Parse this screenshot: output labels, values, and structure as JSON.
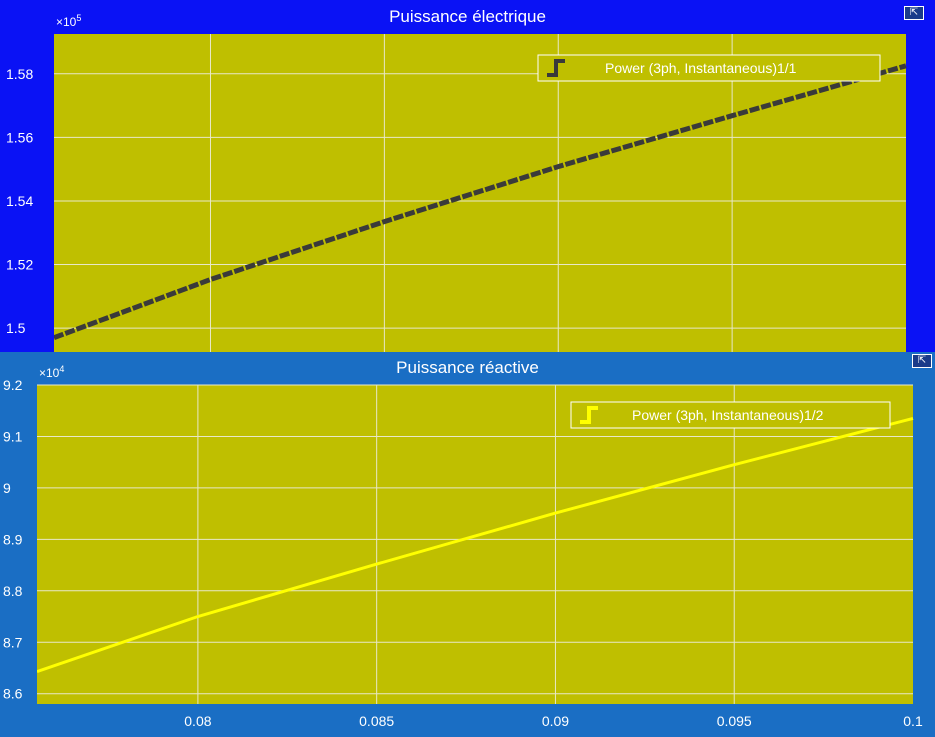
{
  "window": {
    "undock_glyph_top": "⇱",
    "undock_glyph_bottom": "⇱"
  },
  "colors": {
    "panel_top_bg": "#0a12f5",
    "panel_bottom_bg": "#1a6ec4",
    "axes_bg": "#bfbf00",
    "grid": "#e8e8c8",
    "series_top": "#3a3a3a",
    "series_bottom": "#ffff00",
    "text": "#ffffff"
  },
  "chart_data": [
    {
      "type": "line",
      "title": "Puissance électrique",
      "xlabel": "",
      "ylabel": "",
      "y_exponent_label": "×10",
      "y_exponent": "5",
      "xlim": [
        0.0755,
        0.1
      ],
      "ylim": [
        1.4925,
        1.5925
      ],
      "yticks": [
        1.5,
        1.52,
        1.54,
        1.56,
        1.58
      ],
      "ytick_labels": [
        "1.5",
        "1.52",
        "1.54",
        "1.56",
        "1.58"
      ],
      "xticks": [
        0.08,
        0.085,
        0.09,
        0.095,
        0.1
      ],
      "grid": true,
      "legend_placement": "top-right",
      "series": [
        {
          "name": "Power (3ph, Instantaneous)1/1",
          "x": [
            0.0755,
            0.08,
            0.085,
            0.09,
            0.095,
            0.1
          ],
          "y": [
            1.497,
            1.5153,
            1.5335,
            1.5508,
            1.5668,
            1.5825
          ]
        }
      ]
    },
    {
      "type": "line",
      "title": "Puissance réactive",
      "xlabel": "",
      "ylabel": "",
      "y_exponent_label": "×10",
      "y_exponent": "4",
      "xlim": [
        0.0755,
        0.1
      ],
      "ylim": [
        8.58,
        9.2
      ],
      "yticks": [
        8.6,
        8.7,
        8.8,
        8.9,
        9.0,
        9.1,
        9.2
      ],
      "ytick_labels": [
        "8.6",
        "8.7",
        "8.8",
        "8.9",
        "9",
        "9.1",
        "9.2"
      ],
      "xticks": [
        0.08,
        0.085,
        0.09,
        0.095,
        0.1
      ],
      "xtick_labels": [
        "0.08",
        "0.085",
        "0.09",
        "0.095",
        "0.1"
      ],
      "grid": true,
      "legend_placement": "top-right",
      "series": [
        {
          "name": "Power (3ph, Instantaneous)1/2",
          "x": [
            0.0755,
            0.08,
            0.085,
            0.09,
            0.095,
            0.1
          ],
          "y": [
            8.643,
            8.75,
            8.852,
            8.951,
            9.045,
            9.135
          ]
        }
      ]
    }
  ]
}
